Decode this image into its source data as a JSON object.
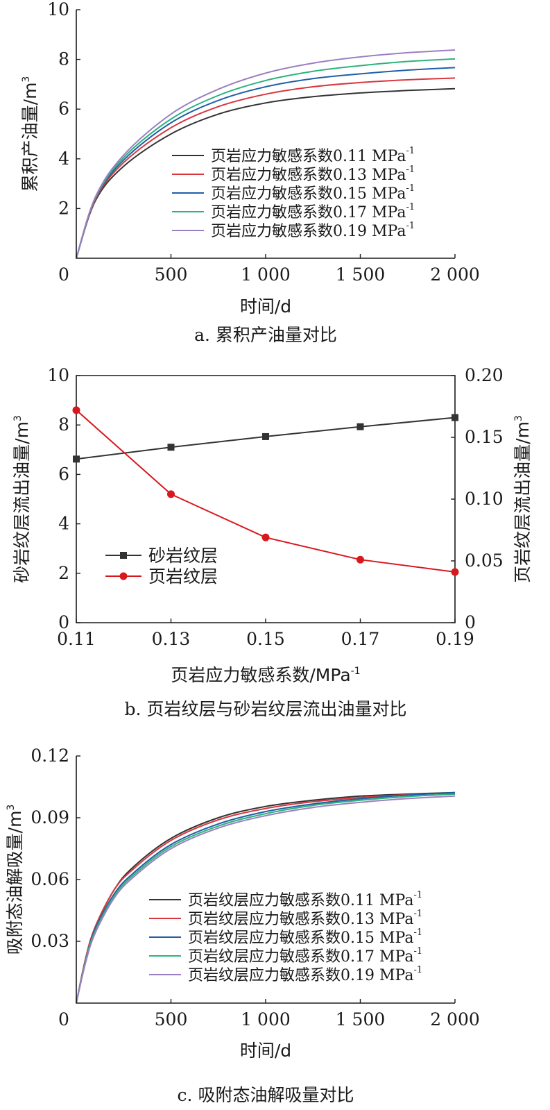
{
  "chart_data": [
    {
      "type": "line",
      "caption": "a. 累积产油量对比",
      "xlabel": "时间/d",
      "ylabel": "累积产油量/m",
      "ylabel_sup": "3",
      "xlim": [
        0,
        2000
      ],
      "ylim": [
        0,
        10
      ],
      "xticks": [
        0,
        500,
        1000,
        1500,
        2000
      ],
      "xtick_labels": [
        "0",
        "500",
        "1 000",
        "1 500",
        "2 000"
      ],
      "yticks": [
        2,
        4,
        6,
        8,
        10
      ],
      "ytick_labels": [
        "2",
        "4",
        "6",
        "8",
        "10"
      ],
      "legend_position": "center-right",
      "unit_sup": "-1",
      "x": [
        0,
        100,
        250,
        500,
        750,
        1000,
        1250,
        1500,
        1750,
        2000
      ],
      "series": [
        {
          "name": "页岩应力敏感系数0.11 MPa",
          "color": "#333333",
          "values": [
            0,
            2.3,
            3.7,
            5.0,
            5.8,
            6.25,
            6.5,
            6.65,
            6.75,
            6.82
          ]
        },
        {
          "name": "页岩应力敏感系数0.13 MPa",
          "color": "#d9363e",
          "values": [
            0,
            2.35,
            3.85,
            5.25,
            6.1,
            6.6,
            6.9,
            7.07,
            7.18,
            7.25
          ]
        },
        {
          "name": "页岩应力敏感系数0.15 MPa",
          "color": "#1f5fa8",
          "values": [
            0,
            2.4,
            3.95,
            5.45,
            6.35,
            6.9,
            7.23,
            7.42,
            7.57,
            7.67
          ]
        },
        {
          "name": "页岩应力敏感系数0.17 MPa",
          "color": "#2bb37a",
          "values": [
            0,
            2.42,
            4.05,
            5.6,
            6.55,
            7.15,
            7.52,
            7.75,
            7.92,
            8.02
          ]
        },
        {
          "name": "页岩应力敏感系数0.19 MPa",
          "color": "#9b7fc2",
          "values": [
            0,
            2.45,
            4.15,
            5.8,
            6.8,
            7.45,
            7.85,
            8.1,
            8.27,
            8.38
          ]
        }
      ]
    },
    {
      "type": "line",
      "caption": "b. 页岩纹层与砂岩纹层流出油量对比",
      "xlabel": "页岩应力敏感系数/MPa",
      "xlabel_sup": "-1",
      "ylabel": "砂岩纹层流出油量/m",
      "ylabel_sup": "3",
      "y2label": "页岩纹层流出油量/m",
      "y2label_sup": "3",
      "ylim": [
        0,
        10
      ],
      "y2lim": [
        0,
        0.2
      ],
      "categories": [
        "0.11",
        "0.13",
        "0.15",
        "0.17",
        "0.19"
      ],
      "yticks": [
        0,
        2,
        4,
        6,
        8,
        10
      ],
      "ytick_labels": [
        "0",
        "2",
        "4",
        "6",
        "8",
        "10"
      ],
      "y2ticks": [
        0,
        0.05,
        0.1,
        0.15,
        0.2
      ],
      "y2tick_labels": [
        "0",
        "0.05",
        "0.10",
        "0.15",
        "0.20"
      ],
      "legend_position": "center-left",
      "series": [
        {
          "name": "砂岩纹层",
          "axis": "left",
          "marker": "square",
          "color": "#333333",
          "values": [
            6.62,
            7.1,
            7.53,
            7.93,
            8.3
          ]
        },
        {
          "name": "页岩纹层",
          "axis": "right",
          "marker": "circle",
          "color": "#d9181e",
          "values": [
            0.172,
            0.104,
            0.069,
            0.051,
            0.041
          ]
        }
      ]
    },
    {
      "type": "line",
      "caption": "c. 吸附态油解吸量对比",
      "xlabel": "时间/d",
      "ylabel": "吸附态油解吸量/m",
      "ylabel_sup": "3",
      "xlim": [
        0,
        2000
      ],
      "ylim": [
        0,
        0.12
      ],
      "xticks": [
        0,
        500,
        1000,
        1500,
        2000
      ],
      "xtick_labels": [
        "0",
        "500",
        "1 000",
        "1 500",
        "2 000"
      ],
      "yticks": [
        0.03,
        0.06,
        0.09,
        0.12
      ],
      "ytick_labels": [
        "0.03",
        "0.06",
        "0.09",
        "0.12"
      ],
      "legend_position": "center-right",
      "unit_sup": "-1",
      "x": [
        0,
        50,
        100,
        200,
        300,
        500,
        750,
        1000,
        1250,
        1500,
        1750,
        2000
      ],
      "series": [
        {
          "name": "页岩纹层应力敏感系数0.11 MPa",
          "color": "#333333",
          "values": [
            0,
            0.022,
            0.037,
            0.055,
            0.066,
            0.08,
            0.09,
            0.0955,
            0.0985,
            0.1005,
            0.1015,
            0.1022
          ]
        },
        {
          "name": "页岩纹层应力敏感系数0.13 MPa",
          "color": "#d9363e",
          "values": [
            0,
            0.022,
            0.037,
            0.055,
            0.065,
            0.079,
            0.089,
            0.0945,
            0.0978,
            0.0998,
            0.1012,
            0.102
          ]
        },
        {
          "name": "页岩纹层应力敏感系数0.15 MPa",
          "color": "#1f5fa8",
          "values": [
            0,
            0.021,
            0.036,
            0.053,
            0.063,
            0.077,
            0.087,
            0.093,
            0.0967,
            0.0992,
            0.101,
            0.1022
          ]
        },
        {
          "name": "页岩纹层应力敏感系数0.17 MPa",
          "color": "#2bb37a",
          "values": [
            0,
            0.021,
            0.035,
            0.052,
            0.062,
            0.076,
            0.086,
            0.092,
            0.096,
            0.0985,
            0.1003,
            0.1015
          ]
        },
        {
          "name": "页岩纹层应力敏感系数0.19 MPa",
          "color": "#9b7fc2",
          "values": [
            0,
            0.02,
            0.034,
            0.051,
            0.061,
            0.075,
            0.085,
            0.091,
            0.095,
            0.0975,
            0.0993,
            0.1005
          ]
        }
      ]
    }
  ]
}
